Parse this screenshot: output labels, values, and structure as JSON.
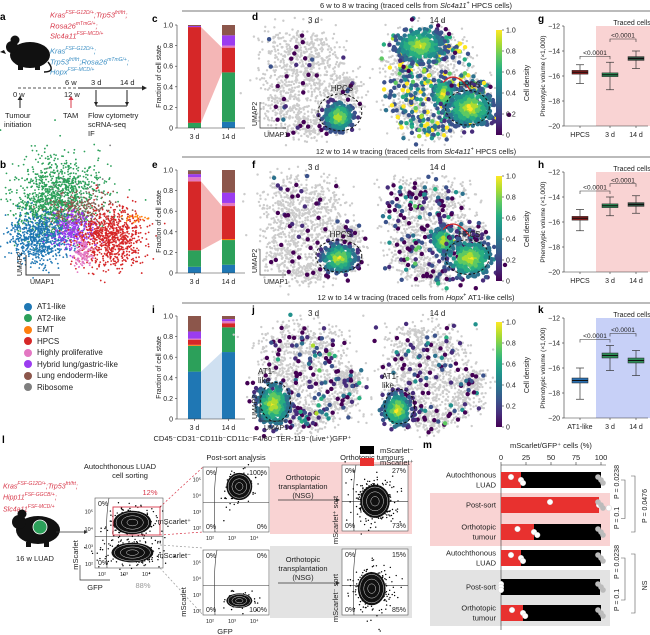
{
  "panel_letters": {
    "a": "a",
    "b": "b",
    "c": "c",
    "d": "d",
    "e": "e",
    "f": "f",
    "g": "g",
    "h": "h",
    "i": "i",
    "j": "j",
    "k": "k",
    "l": "l",
    "m": "m"
  },
  "panel_a": {
    "genotype_red": [
      "Kras^FSF-G12D/+;Trp53^frt/frt;",
      "Rosa26^mTmG/+;",
      "Slc4a11^FSF-MCD/+"
    ],
    "genotype_blue": [
      "Kras^FSF-G12D/+;",
      "Trp53^frt/frt;Rosa26^mTmG/+;",
      "Hopx^FSF-MCD/+"
    ],
    "timeline": {
      "t0": "0 w",
      "t6": "6 w",
      "t12": "12 w",
      "d3": "3 d",
      "d14": "14 d"
    },
    "tumour_initiation": [
      "Tumour",
      "initiation"
    ],
    "tam": "TAM",
    "assays": [
      "Flow cytometry",
      "scRNA-seq",
      "IF"
    ]
  },
  "panel_b": {
    "xlabel": "UMAP1",
    "ylabel": "UMAP2",
    "legend": [
      {
        "label": "AT1-like",
        "color": "#1f77b4"
      },
      {
        "label": "AT2-like",
        "color": "#2ca05a"
      },
      {
        "label": "EMT",
        "color": "#ff7f0e"
      },
      {
        "label": "HPCS",
        "color": "#d62728"
      },
      {
        "label": "Highly proliferative",
        "color": "#e377c2"
      },
      {
        "label": "Hybrid lung/gastric-like",
        "color": "#9b3cf0"
      },
      {
        "label": "Lung endoderm-like",
        "color": "#8c564b"
      },
      {
        "label": "Ribosome",
        "color": "#7f7f7f"
      }
    ]
  },
  "rows": [
    {
      "header_pre": "6 w to 8 w tracing (traced cells from ",
      "header_gene": "Slc4a11",
      "header_sup": "+",
      "header_post": " HPCS cells)"
    },
    {
      "header_pre": "12 w to 14 w tracing (traced cells from ",
      "header_gene": "Slc4a11",
      "header_sup": "+",
      "header_post": " HPCS cells)"
    },
    {
      "header_pre": "12 w to 14 w tracing (traced cells from ",
      "header_gene": "Hopx",
      "header_sup": "+",
      "header_post": " AT1-like cells)"
    }
  ],
  "umap": {
    "xlabel": "UMAP1",
    "ylabel": "UMAP2",
    "t3": "3 d",
    "t14": "14 d",
    "hpcs_label": "HPCS",
    "at1_label": "AT1-\nlike",
    "colorbar_label": "Cell density",
    "colorbar_ticks": [
      "1.0",
      "0.8",
      "0.6",
      "0.4",
      "0.2",
      "0"
    ],
    "colormap": "viridis",
    "background_color": "#cccccc",
    "arrow_color": "#d62728"
  },
  "panel_l": {
    "header": "CD45⁻CD31⁻CD11b⁻CD11c⁻F4/80⁻TER-119⁻(Live⁺)GFP⁺",
    "genotype_red": [
      "Kras^FSF-G12D/+;Trp53^frt/frt;",
      "Hipp11^FSF-GGCB/+;",
      "Slc4a11^FSF-MCD/+"
    ],
    "mouse_label": "16 w LUAD",
    "sorting_title": [
      "Autochthonous LUAD",
      "cell sorting"
    ],
    "post_sort_title": "Post-sort analysis",
    "orthotopic_title": "Orthotopic tumours",
    "transplant_label": [
      "Orthotopic",
      "transplantation",
      "(NSG)"
    ],
    "gate_pct": "12%",
    "neg_pct": "88%",
    "mscarlet_pos": "mScarlet⁺",
    "mscarlet_neg": "mScarlet⁻",
    "xaxis": "GFP",
    "yaxis": "mScarlet",
    "ticks": [
      "10²",
      "10³",
      "10⁴",
      "10⁵"
    ],
    "sort_quadrants": {
      "tl": "0%",
      "bl": "0%"
    },
    "postsort_pos": {
      "tl": "0%",
      "tr": "100%",
      "bl": "0%",
      "br": "0%"
    },
    "postsort_neg": {
      "tl": "0%",
      "tr": "0%",
      "bl": "0%",
      "br": "100%"
    },
    "ortho_pos": {
      "tl": "0%",
      "tr": "27%",
      "bl": "0%",
      "br": "73%"
    },
    "ortho_neg": {
      "tl": "0%",
      "tr": "15%",
      "bl": "0%",
      "br": "85%"
    },
    "pos_bg": "#f9d3d3",
    "neg_bg": "#e3e3e3"
  },
  "chart_data": [
    {
      "id": "c",
      "type": "bar",
      "stacked": true,
      "ylabel": "Fraction of cell state",
      "ylim": [
        0,
        1
      ],
      "yticks": [
        "0",
        "0.2",
        "0.4",
        "0.6",
        "0.8",
        "1.0"
      ],
      "categories": [
        "3 d",
        "14 d"
      ],
      "highlight": "HPCS",
      "highlight_color": "#f4b6b6",
      "series": [
        {
          "name": "AT1-like",
          "values": [
            0,
            0.06
          ]
        },
        {
          "name": "AT2-like",
          "values": [
            0.05,
            0.48
          ]
        },
        {
          "name": "EMT",
          "values": [
            0,
            0
          ]
        },
        {
          "name": "HPCS",
          "values": [
            0.93,
            0.24
          ]
        },
        {
          "name": "Highly proliferative",
          "values": [
            0,
            0.02
          ]
        },
        {
          "name": "Hybrid lung/gastric-like",
          "values": [
            0.01,
            0.1
          ]
        },
        {
          "name": "Lung endoderm-like",
          "values": [
            0.01,
            0.1
          ]
        },
        {
          "name": "Ribosome",
          "values": [
            0,
            0
          ]
        }
      ]
    },
    {
      "id": "e",
      "type": "bar",
      "stacked": true,
      "ylabel": "Fraction of cell state",
      "ylim": [
        0,
        1
      ],
      "yticks": [
        "0",
        "0.2",
        "0.4",
        "0.6",
        "0.8",
        "1.0"
      ],
      "categories": [
        "3 d",
        "14 d"
      ],
      "highlight": "HPCS",
      "highlight_color": "#f4b6b6",
      "series": [
        {
          "name": "AT1-like",
          "values": [
            0.06,
            0.08
          ]
        },
        {
          "name": "AT2-like",
          "values": [
            0.16,
            0.24
          ]
        },
        {
          "name": "EMT",
          "values": [
            0,
            0.01
          ]
        },
        {
          "name": "HPCS",
          "values": [
            0.67,
            0.32
          ]
        },
        {
          "name": "Highly proliferative",
          "values": [
            0.04,
            0.03
          ]
        },
        {
          "name": "Hybrid lung/gastric-like",
          "values": [
            0.03,
            0.1
          ]
        },
        {
          "name": "Lung endoderm-like",
          "values": [
            0.03,
            0.22
          ]
        },
        {
          "name": "Ribosome",
          "values": [
            0.01,
            0
          ]
        }
      ]
    },
    {
      "id": "i",
      "type": "bar",
      "stacked": true,
      "ylabel": "Fraction of cell state",
      "ylim": [
        0,
        1
      ],
      "yticks": [
        "0",
        "0.2",
        "0.4",
        "0.6",
        "0.8",
        "1.0"
      ],
      "categories": [
        "3 d",
        "14 d"
      ],
      "highlight": "AT1-like",
      "highlight_color": "#cfe0f1",
      "series": [
        {
          "name": "AT1-like",
          "values": [
            0.46,
            0.65
          ]
        },
        {
          "name": "AT2-like",
          "values": [
            0.25,
            0.24
          ]
        },
        {
          "name": "EMT",
          "values": [
            0.01,
            0
          ]
        },
        {
          "name": "HPCS",
          "values": [
            0.05,
            0.04
          ]
        },
        {
          "name": "Highly proliferative",
          "values": [
            0.01,
            0.02
          ]
        },
        {
          "name": "Hybrid lung/gastric-like",
          "values": [
            0.07,
            0.02
          ]
        },
        {
          "name": "Lung endoderm-like",
          "values": [
            0.15,
            0.03
          ]
        },
        {
          "name": "Ribosome",
          "values": [
            0,
            0
          ]
        }
      ]
    },
    {
      "id": "g",
      "type": "box",
      "ylabel": "Phenotypic volume (×1,000)",
      "ylim": [
        -20,
        -12
      ],
      "yticks": [
        "-12",
        "-14",
        "-16",
        "-18",
        "-20"
      ],
      "shade_label": "Traced cells",
      "shade_color": "#f9d3d3",
      "pvalues": [
        "<0.0001",
        "<0.0001"
      ],
      "groups": [
        {
          "label": "HPCS",
          "median": -15.7,
          "q1": -15.85,
          "q3": -15.55,
          "min": -16.6,
          "max": -15.1,
          "color": "#8b1c1c"
        },
        {
          "label": "3 d",
          "median": -15.9,
          "q1": -16.05,
          "q3": -15.75,
          "min": -17.1,
          "max": -14.9,
          "color": "#2e8b57"
        },
        {
          "label": "14 d",
          "median": -14.6,
          "q1": -14.75,
          "q3": -14.45,
          "min": -15.4,
          "max": -14.0,
          "color": "#2f4f3f"
        }
      ]
    },
    {
      "id": "h",
      "type": "box",
      "ylabel": "Phenotypic volume (×1,000)",
      "ylim": [
        -20,
        -12
      ],
      "yticks": [
        "-12",
        "-14",
        "-16",
        "-18",
        "-20"
      ],
      "shade_label": "Traced cells",
      "shade_color": "#f9d3d3",
      "pvalues": [
        "<0.0001",
        "<0.0001"
      ],
      "groups": [
        {
          "label": "HPCS",
          "median": -15.7,
          "q1": -15.85,
          "q3": -15.55,
          "min": -16.7,
          "max": -15.0,
          "color": "#8b1c1c"
        },
        {
          "label": "3 d",
          "median": -14.7,
          "q1": -14.85,
          "q3": -14.55,
          "min": -15.5,
          "max": -14.0,
          "color": "#2e8b57"
        },
        {
          "label": "14 d",
          "median": -14.6,
          "q1": -14.75,
          "q3": -14.45,
          "min": -15.3,
          "max": -13.9,
          "color": "#2f4f3f"
        }
      ]
    },
    {
      "id": "k",
      "type": "box",
      "ylabel": "Phenotypic volume (×1,000)",
      "ylim": [
        -20,
        -12
      ],
      "yticks": [
        "-12",
        "-14",
        "-16",
        "-18",
        "-20"
      ],
      "shade_label": "Traced cells",
      "shade_color": "#c7d0f7",
      "pvalues": [
        "<0.0001",
        "<0.0001"
      ],
      "groups": [
        {
          "label": "AT1-like",
          "median": -17.0,
          "q1": -17.2,
          "q3": -16.8,
          "min": -18.5,
          "max": -16.0,
          "color": "#2a6fb0"
        },
        {
          "label": "3 d",
          "median": -15.0,
          "q1": -15.2,
          "q3": -14.8,
          "min": -16.2,
          "max": -14.2,
          "color": "#2e8b57"
        },
        {
          "label": "14 d",
          "median": -15.4,
          "q1": -15.6,
          "q3": -15.2,
          "min": -16.6,
          "max": -14.6,
          "color": "#2e8b57"
        }
      ]
    },
    {
      "id": "m",
      "type": "bar",
      "stacked": true,
      "orientation": "horizontal",
      "xlabel": "mScarlet/GFP⁺ cells (%)",
      "xlim": [
        0,
        100
      ],
      "xticks": [
        "0",
        "25",
        "50",
        "75",
        "100"
      ],
      "legend": [
        {
          "name": "mScarlet⁻",
          "color": "#000000"
        },
        {
          "name": "mScarlet⁺",
          "color": "#e8312f"
        }
      ],
      "groups": [
        {
          "label": "mScarlet⁺ sort",
          "bg": "#f9d3d3"
        },
        {
          "label": "mScarlet⁻ sort",
          "bg": "#e3e3e3"
        }
      ],
      "rows": [
        {
          "label": "Autochthonous\nLUAD",
          "group": 0,
          "mscarlet_pos": 20,
          "mscarlet_neg": 80,
          "shaded": false
        },
        {
          "label": "Post-sort",
          "group": 0,
          "mscarlet_pos": 98,
          "mscarlet_neg": 0,
          "shaded": true
        },
        {
          "label": "Orthotopic\ntumour",
          "group": 0,
          "mscarlet_pos": 33,
          "mscarlet_neg": 67,
          "shaded": true
        },
        {
          "label": "Autochthonous\nLUAD",
          "group": 1,
          "mscarlet_pos": 20,
          "mscarlet_neg": 80,
          "shaded": false
        },
        {
          "label": "Post-sort",
          "group": 1,
          "mscarlet_pos": 0,
          "mscarlet_neg": 99,
          "shaded": true
        },
        {
          "label": "Orthotopic\ntumour",
          "group": 1,
          "mscarlet_pos": 22,
          "mscarlet_neg": 78,
          "shaded": true
        }
      ],
      "stats": {
        "pos_inner": [
          "P = 0.1",
          "P = 0.0238"
        ],
        "pos_outer": "P = 0.0476",
        "neg_inner": [
          "P = 0.1",
          "P = 0.0238"
        ],
        "neg_outer": "NS"
      }
    }
  ]
}
